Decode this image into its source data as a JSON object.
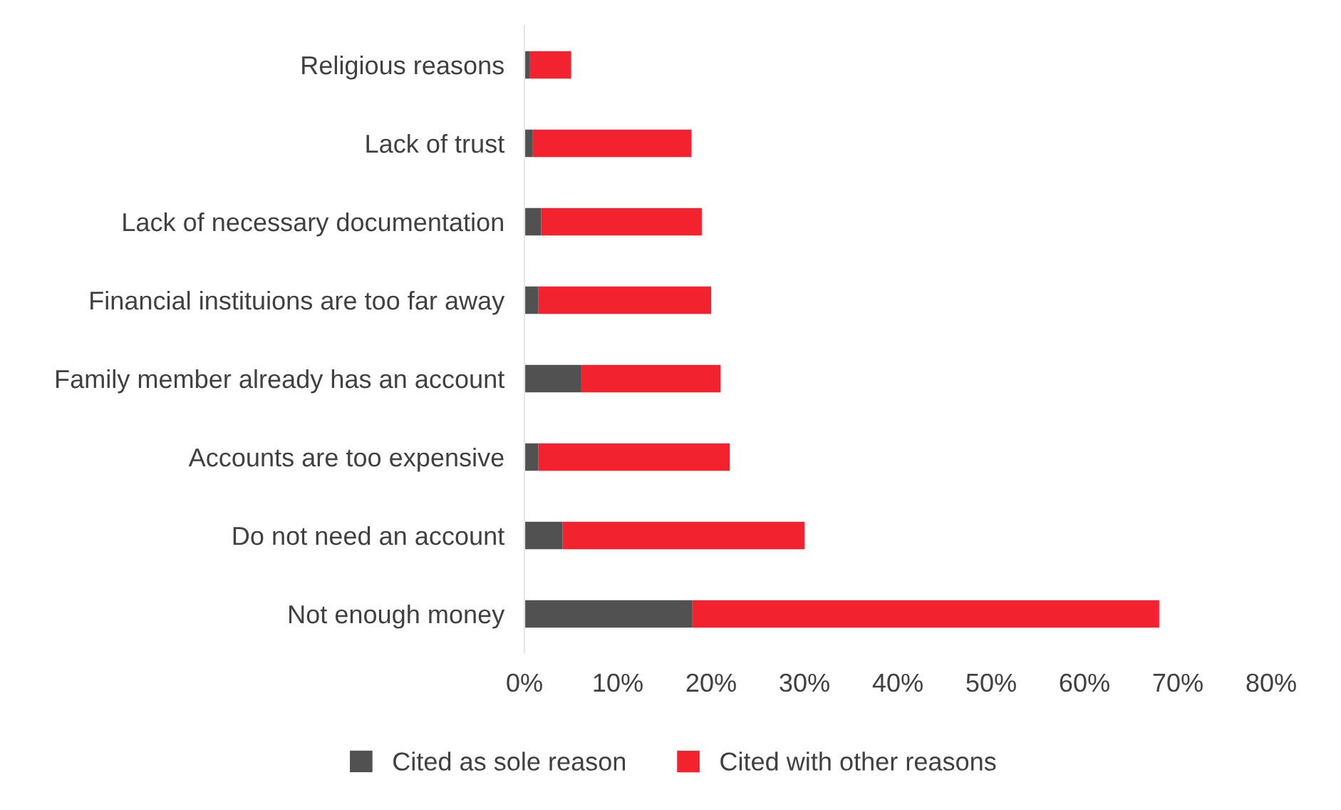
{
  "chart_data": {
    "type": "bar",
    "orientation": "horizontal",
    "stacked": true,
    "categories": [
      "Religious reasons",
      "Lack of trust",
      "Lack of necessary documentation",
      "Financial instituions are too far away",
      "Family member already has an account",
      "Accounts are too expensive",
      "Do not need an account",
      "Not enough money"
    ],
    "series": [
      {
        "name": "Cited as sole reason",
        "color": "#515151",
        "values": [
          0.6,
          0.9,
          1.8,
          1.5,
          6.1,
          1.5,
          4.1,
          18.0
        ]
      },
      {
        "name": "Cited with other reasons",
        "color": "#f2222f",
        "values": [
          4.4,
          17.0,
          17.2,
          18.5,
          14.9,
          20.5,
          25.9,
          50.0
        ]
      }
    ],
    "xlim": [
      0,
      80
    ],
    "xticks": [
      {
        "value": 0,
        "label": "0%"
      },
      {
        "value": 10,
        "label": "10%"
      },
      {
        "value": 20,
        "label": "20%"
      },
      {
        "value": 30,
        "label": "30%"
      },
      {
        "value": 40,
        "label": "40%"
      },
      {
        "value": 50,
        "label": "50%"
      },
      {
        "value": 60,
        "label": "60%"
      },
      {
        "value": 70,
        "label": "70%"
      },
      {
        "value": 80,
        "label": "80%"
      }
    ],
    "grid": false,
    "legend": "bottom"
  }
}
